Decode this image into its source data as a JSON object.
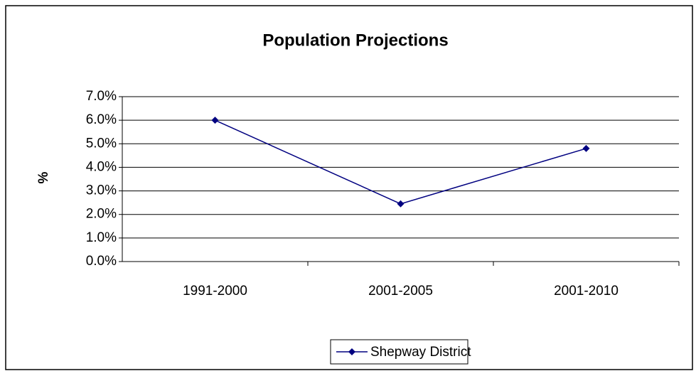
{
  "chart_data": {
    "type": "line",
    "title": "Population Projections",
    "ylabel": "%",
    "categories": [
      "1991-2000",
      "2001-2005",
      "2001-2010"
    ],
    "series": [
      {
        "name": "Shepway District",
        "color": "#000080",
        "values": [
          6.0,
          2.45,
          4.8
        ]
      }
    ],
    "ylim": [
      0,
      7
    ],
    "yticks": [
      {
        "value": 0,
        "label": "0.0%"
      },
      {
        "value": 1,
        "label": "1.0%"
      },
      {
        "value": 2,
        "label": "2.0%"
      },
      {
        "value": 3,
        "label": "3.0%"
      },
      {
        "value": 4,
        "label": "4.0%"
      },
      {
        "value": 5,
        "label": "5.0%"
      },
      {
        "value": 6,
        "label": "6.0%"
      },
      {
        "value": 7,
        "label": "7.0%"
      }
    ],
    "grid": true,
    "legend": "bottom"
  }
}
